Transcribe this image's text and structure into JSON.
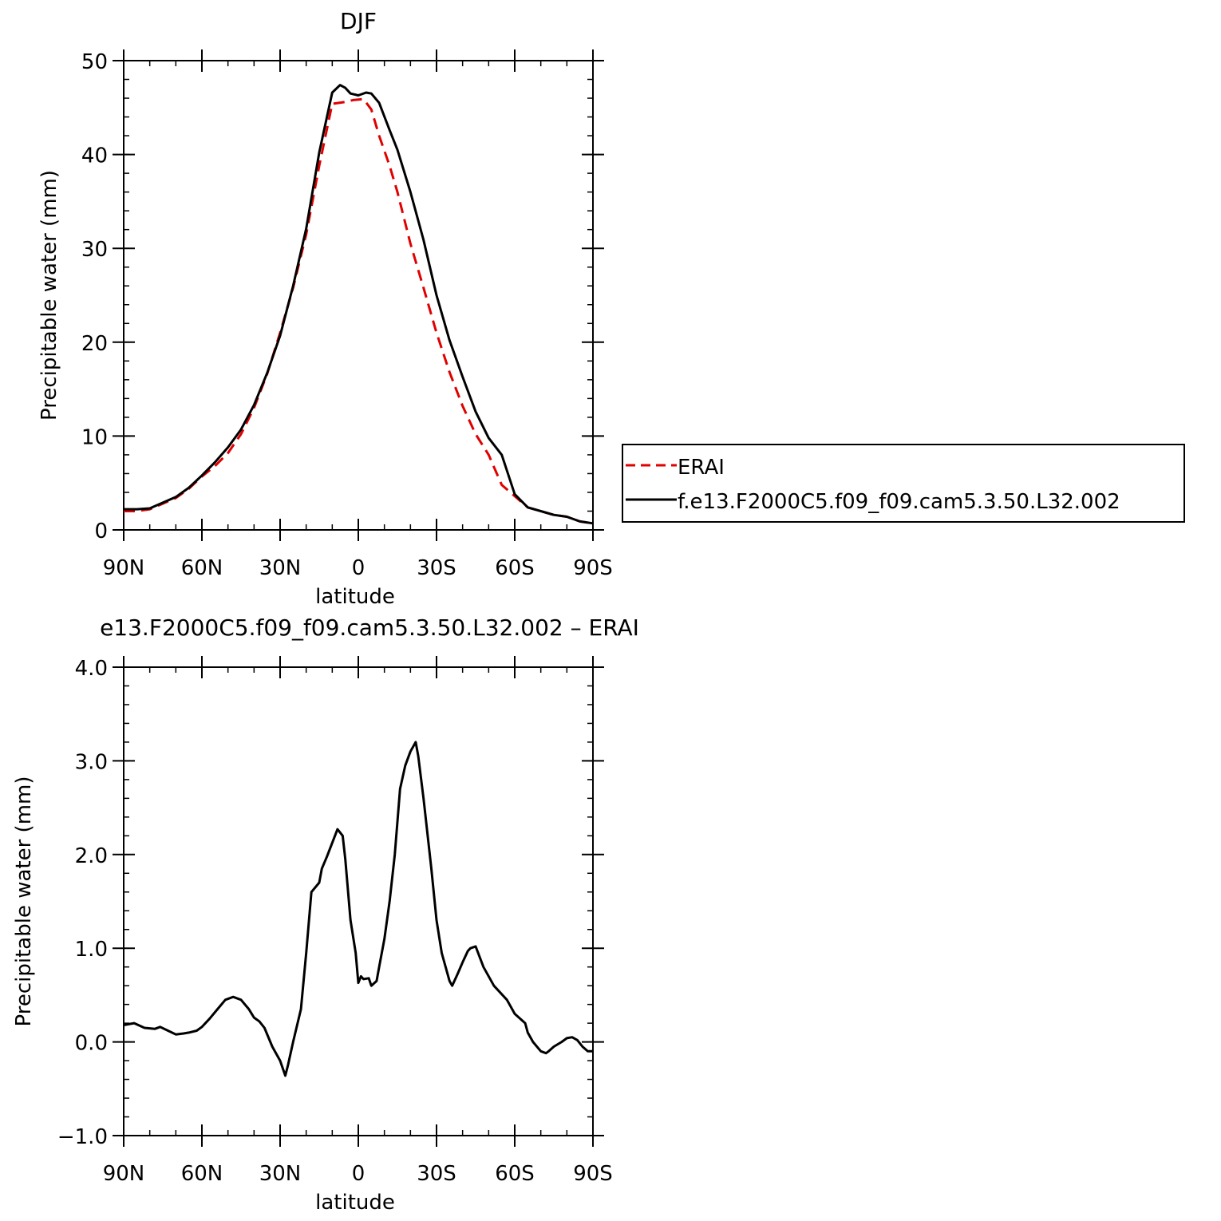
{
  "chart_data": [
    {
      "type": "line",
      "title": "DJF",
      "xlabel": "latitude",
      "ylabel": "Precipitable water (mm)",
      "xlim": [
        90,
        -90
      ],
      "ylim": [
        0,
        50
      ],
      "x_ticks": [
        90,
        60,
        30,
        0,
        -30,
        -60,
        -90
      ],
      "x_tick_labels": [
        "90N",
        "60N",
        "30N",
        "0",
        "30S",
        "60S",
        "90S"
      ],
      "y_ticks": [
        0,
        10,
        20,
        30,
        40,
        50
      ],
      "y_tick_labels": [
        "0",
        "10",
        "20",
        "30",
        "40",
        "50"
      ],
      "legend": {
        "placement": "right",
        "entries": [
          "ERAI",
          "f.e13.F2000C5.f09_f09.cam5.3.50.L32.002"
        ]
      },
      "series": [
        {
          "name": "ERAI",
          "color": "#e00000",
          "dash": true,
          "x": [
            90,
            85,
            80,
            75,
            70,
            65,
            60,
            55,
            50,
            45,
            40,
            35,
            30,
            25,
            20,
            15,
            10,
            5,
            2,
            -2,
            -5,
            -8,
            -12,
            -15,
            -20,
            -25,
            -30,
            -35,
            -40,
            -45,
            -50,
            -55,
            -60,
            -65,
            -70,
            -75,
            -80,
            -85,
            -90
          ],
          "y": [
            2.0,
            2.0,
            2.2,
            2.8,
            3.4,
            4.4,
            5.7,
            6.8,
            8.2,
            10.2,
            13.0,
            16.6,
            21.0,
            25.8,
            31.5,
            38.8,
            45.4,
            45.6,
            45.8,
            45.9,
            44.8,
            42.0,
            38.8,
            36.0,
            30.5,
            25.8,
            21.0,
            16.8,
            13.2,
            10.2,
            8.0,
            4.8,
            3.6,
            2.4,
            2.0,
            1.6,
            1.4,
            0.9,
            0.7
          ]
        },
        {
          "name": "f.e13.F2000C5.f09_f09.cam5.3.50.L32.002",
          "color": "#000000",
          "dash": false,
          "x": [
            90,
            85,
            80,
            75,
            70,
            65,
            60,
            55,
            50,
            45,
            40,
            35,
            30,
            25,
            20,
            15,
            10,
            7,
            5,
            3,
            0,
            -3,
            -5,
            -8,
            -12,
            -15,
            -20,
            -25,
            -30,
            -35,
            -40,
            -45,
            -50,
            -55,
            -60,
            -65,
            -70,
            -75,
            -80,
            -85,
            -90
          ],
          "y": [
            2.2,
            2.2,
            2.3,
            2.9,
            3.5,
            4.5,
            5.8,
            7.2,
            8.8,
            10.7,
            13.3,
            16.7,
            20.7,
            26.0,
            32.1,
            40.2,
            46.6,
            47.4,
            47.1,
            46.5,
            46.3,
            46.6,
            46.5,
            45.5,
            42.6,
            40.5,
            36.0,
            30.9,
            25.0,
            20.2,
            16.3,
            12.6,
            9.8,
            8.0,
            3.8,
            2.4,
            2.0,
            1.6,
            1.4,
            0.9,
            0.7
          ]
        }
      ]
    },
    {
      "type": "line",
      "title": "e13.F2000C5.f09_f09.cam5.3.50.L32.002 – ERAI",
      "xlabel": "latitude",
      "ylabel": "Precipitable water (mm)",
      "xlim": [
        90,
        -90
      ],
      "ylim": [
        -1.0,
        4.0
      ],
      "x_ticks": [
        90,
        60,
        30,
        0,
        -30,
        -60,
        -90
      ],
      "x_tick_labels": [
        "90N",
        "60N",
        "30N",
        "0",
        "30S",
        "60S",
        "90S"
      ],
      "y_ticks": [
        -1.0,
        0.0,
        1.0,
        2.0,
        3.0,
        4.0
      ],
      "y_tick_labels": [
        "−1.0",
        "0.0",
        "1.0",
        "2.0",
        "3.0",
        "4.0"
      ],
      "series": [
        {
          "color": "#000000",
          "x": [
            90,
            86,
            82,
            78,
            76,
            73,
            70,
            67,
            65,
            62,
            60,
            57,
            54,
            51,
            48,
            45,
            42,
            40,
            38,
            36,
            33,
            30,
            28,
            27,
            25,
            22,
            20,
            18,
            15,
            14,
            12,
            8,
            6,
            5,
            3,
            1,
            0,
            -1,
            -2,
            -4,
            -5,
            -7,
            -8,
            -10,
            -12,
            -14,
            -16,
            -18,
            -20,
            -22,
            -23,
            -25,
            -28,
            -30,
            -32,
            -35,
            -36,
            -38,
            -40,
            -42,
            -43,
            -45,
            -48,
            -52,
            -57,
            -60,
            -64,
            -65,
            -67,
            -70,
            -72,
            -73,
            -75,
            -78,
            -80,
            -82,
            -84,
            -86,
            -88,
            -90
          ],
          "y": [
            0.18,
            0.2,
            0.15,
            0.14,
            0.16,
            0.12,
            0.08,
            0.09,
            0.1,
            0.12,
            0.16,
            0.25,
            0.35,
            0.45,
            0.48,
            0.45,
            0.35,
            0.26,
            0.22,
            0.15,
            -0.05,
            -0.2,
            -0.36,
            -0.25,
            0.0,
            0.35,
            0.95,
            1.6,
            1.7,
            1.85,
            1.98,
            2.27,
            2.2,
            1.95,
            1.3,
            0.95,
            0.63,
            0.7,
            0.67,
            0.68,
            0.6,
            0.65,
            0.8,
            1.1,
            1.5,
            2.0,
            2.7,
            2.95,
            3.1,
            3.2,
            3.05,
            2.6,
            1.85,
            1.3,
            0.95,
            0.65,
            0.6,
            0.72,
            0.85,
            0.97,
            1.0,
            1.02,
            0.8,
            0.6,
            0.45,
            0.3,
            0.2,
            0.1,
            0.0,
            -0.1,
            -0.12,
            -0.1,
            -0.05,
            0.0,
            0.04,
            0.05,
            0.02,
            -0.05,
            -0.1,
            -0.1
          ]
        }
      ]
    }
  ]
}
